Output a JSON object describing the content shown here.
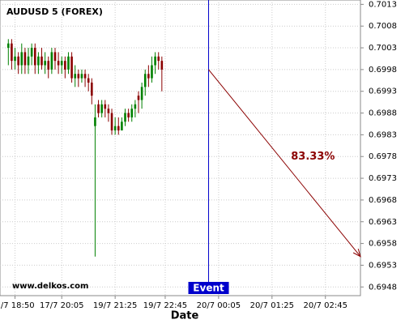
{
  "chart_data": {
    "type": "candlestick",
    "title": "AUDUSD 5 (FOREX)",
    "watermark": "www.delkos.com",
    "x_label": "Date",
    "xlim": [
      -2.5,
      105.5
    ],
    "xticks": [
      {
        "value": 2,
        "label": "7/7 18:50"
      },
      {
        "value": 16,
        "label": "17/7 20:05"
      },
      {
        "value": 32,
        "label": "19/7 21:25"
      },
      {
        "value": 47,
        "label": "19/7 22:45"
      },
      {
        "value": 63,
        "label": "20/7 00:05"
      },
      {
        "value": 79,
        "label": "20/7 01:25"
      },
      {
        "value": 95,
        "label": "20/7 02:45"
      }
    ],
    "ylim": [
      0.6946,
      0.7014
    ],
    "yticks": [
      0.7013,
      0.7008,
      0.7003,
      0.6998,
      0.6993,
      0.6988,
      0.6983,
      0.6978,
      0.6973,
      0.6968,
      0.6963,
      0.6958,
      0.6953,
      0.6948
    ],
    "grid": true,
    "up_color": "#008000",
    "down_color": "#8b0000",
    "open": [
      0.7003,
      0.7004,
      0.7,
      0.7001,
      0.6999,
      0.7002,
      0.6999,
      0.7001,
      0.7003,
      0.6999,
      0.7001,
      0.6999,
      0.7,
      0.6998,
      0.7002,
      0.7,
      0.6999,
      0.7,
      0.6998,
      0.7001,
      0.6996,
      0.6997,
      0.6996,
      0.6997,
      0.6996,
      0.6995,
      0.6985,
      0.699,
      0.6988,
      0.699,
      0.6989,
      0.6988,
      0.6984,
      0.6985,
      0.6984,
      0.6986,
      0.6988,
      0.6987,
      0.6989,
      0.6992,
      0.6991,
      0.6994,
      0.6997,
      0.6996,
      0.6999,
      0.7001,
      0.7
    ],
    "high": [
      0.7005,
      0.7005,
      0.7003,
      0.7002,
      0.7004,
      0.7003,
      0.7003,
      0.7004,
      0.7004,
      0.7002,
      0.7003,
      0.7002,
      0.7001,
      0.7003,
      0.7003,
      0.7002,
      0.7001,
      0.7001,
      0.7002,
      0.7002,
      0.6999,
      0.6998,
      0.6998,
      0.6998,
      0.6997,
      0.6996,
      0.699,
      0.6991,
      0.6991,
      0.6991,
      0.699,
      0.6989,
      0.6987,
      0.6987,
      0.6987,
      0.6989,
      0.6989,
      0.699,
      0.6991,
      0.6993,
      0.6995,
      0.6998,
      0.6999,
      0.7001,
      0.7002,
      0.7002,
      0.7001
    ],
    "low": [
      0.6999,
      0.6998,
      0.6998,
      0.6997,
      0.6997,
      0.6997,
      0.6997,
      0.6999,
      0.6997,
      0.6997,
      0.6998,
      0.6997,
      0.6996,
      0.6997,
      0.6998,
      0.6997,
      0.6997,
      0.6996,
      0.6997,
      0.6995,
      0.6994,
      0.6994,
      0.6995,
      0.6994,
      0.6993,
      0.699,
      0.6955,
      0.6987,
      0.6987,
      0.6987,
      0.6986,
      0.6983,
      0.6983,
      0.6983,
      0.6984,
      0.6985,
      0.6986,
      0.6986,
      0.6987,
      0.6988,
      0.6989,
      0.6992,
      0.6994,
      0.6995,
      0.6997,
      0.6998,
      0.6993
    ],
    "close": [
      0.7004,
      0.7,
      0.7001,
      0.6999,
      0.7002,
      0.6999,
      0.7001,
      0.7003,
      0.6999,
      0.7001,
      0.6999,
      0.7,
      0.6998,
      0.7002,
      0.7,
      0.6999,
      0.7,
      0.6998,
      0.7001,
      0.6996,
      0.6997,
      0.6996,
      0.6997,
      0.6996,
      0.6995,
      0.6992,
      0.6987,
      0.6988,
      0.699,
      0.6989,
      0.6988,
      0.6984,
      0.6985,
      0.6984,
      0.6986,
      0.6988,
      0.6987,
      0.6989,
      0.699,
      0.6991,
      0.6994,
      0.6997,
      0.6996,
      0.6999,
      0.7001,
      0.7,
      0.6998
    ],
    "event": {
      "label": "Event",
      "x": 60,
      "color": "#0000cc"
    },
    "forecast": {
      "label": "83.33%",
      "x": [
        60,
        105.5
      ],
      "y": [
        0.6998,
        0.6955
      ],
      "color": "#8b0000"
    }
  }
}
